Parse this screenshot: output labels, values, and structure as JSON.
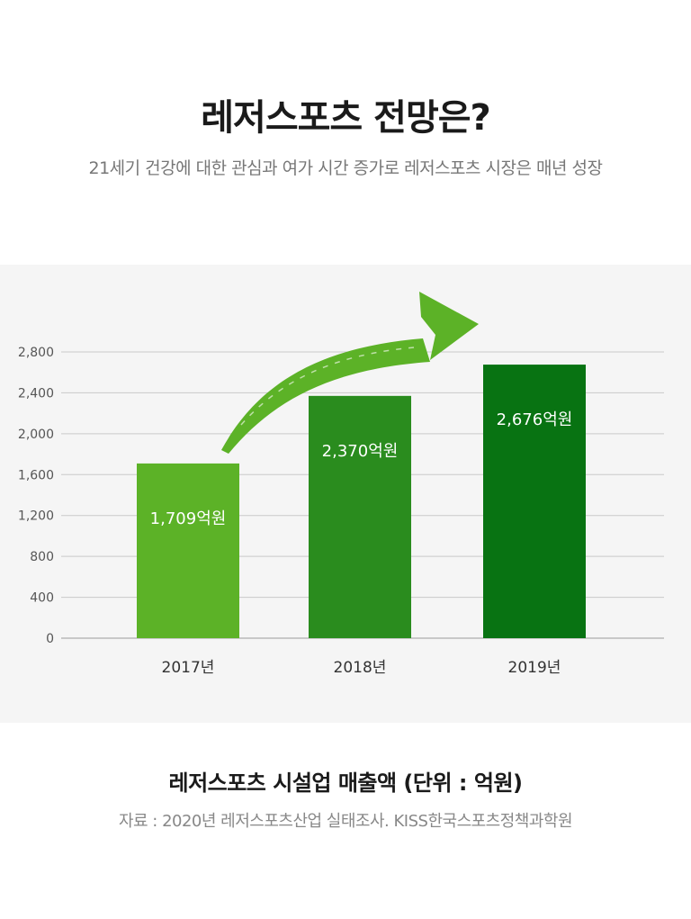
{
  "header": {
    "title": "레저스포츠 전망은?",
    "subtitle": "21세기 건강에 대한 관심과 여가 시간 증가로 레저스포츠 시장은 매년 성장"
  },
  "footer": {
    "caption": "레저스포츠 시설업 매출액 (단위 : 억원)",
    "source": "자료 : 2020년 레저스포츠산업 실태조사. KISS한국스포츠정책과학원"
  },
  "chart_data": {
    "type": "bar",
    "categories": [
      "2017년",
      "2018년",
      "2019년"
    ],
    "values": [
      1709,
      2370,
      2676
    ],
    "value_labels": [
      "1,709억원",
      "2,370억원",
      "2,676억원"
    ],
    "bar_colors": [
      "#5cb227",
      "#2a8c1e",
      "#087312"
    ],
    "arrow_color": "#5cb227",
    "yticks": [
      0,
      400,
      800,
      1200,
      1600,
      2000,
      2400,
      2800
    ],
    "ytick_labels": [
      "0",
      "400",
      "800",
      "1,200",
      "1,600",
      "2,000",
      "2,400",
      "2,800"
    ],
    "ylim": [
      0,
      2800
    ],
    "grid": true,
    "xlabel": "",
    "ylabel": ""
  }
}
